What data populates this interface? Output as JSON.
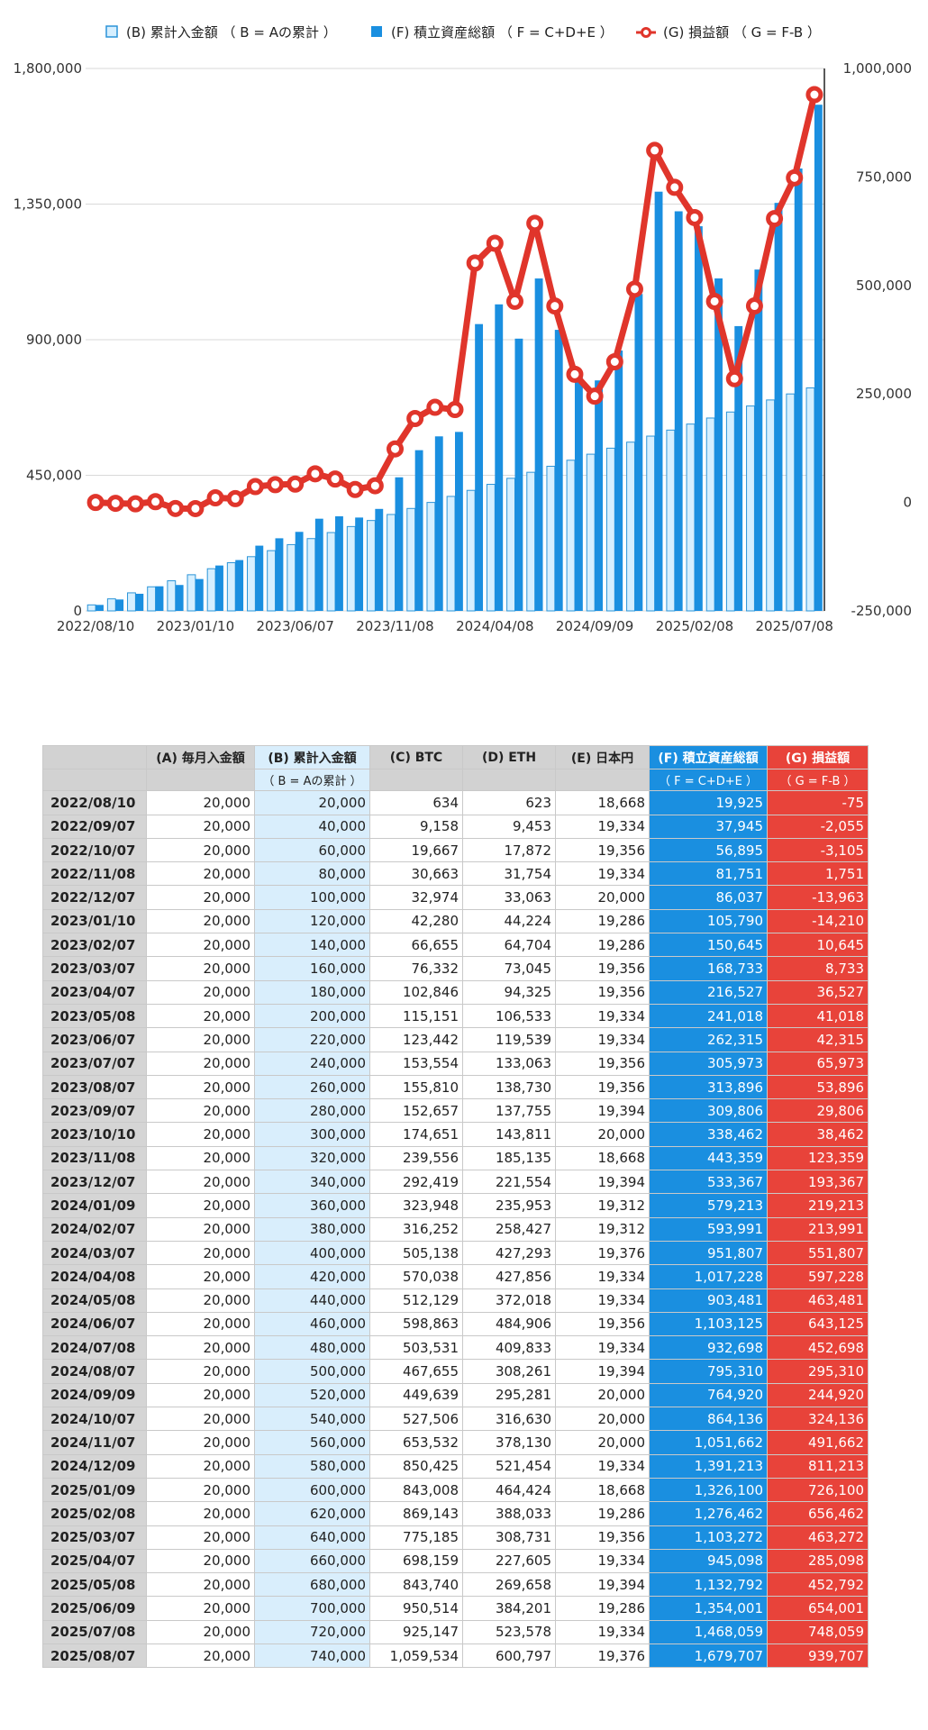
{
  "colors": {
    "cumulative_fill": "#d6efff",
    "cumulative_stroke": "#2b94d8",
    "assets_fill": "#1a8fe0",
    "profit_line": "#e0352b",
    "grid": "#d9d9d9"
  },
  "chart_data": {
    "type": "bar",
    "series": [
      {
        "name": "(B) 累計入金額 （ B = Aの累計 ）",
        "type": "bar",
        "axis": "left",
        "values": [
          20000,
          40000,
          60000,
          80000,
          100000,
          120000,
          140000,
          160000,
          180000,
          200000,
          220000,
          240000,
          260000,
          280000,
          300000,
          320000,
          340000,
          360000,
          380000,
          400000,
          420000,
          440000,
          460000,
          480000,
          500000,
          520000,
          540000,
          560000,
          580000,
          600000,
          620000,
          640000,
          660000,
          680000,
          700000,
          720000,
          740000
        ]
      },
      {
        "name": "(F) 積立資産総額 （ F = C+D+E ）",
        "type": "bar",
        "axis": "left",
        "values": [
          19925,
          37945,
          56895,
          81751,
          86037,
          105790,
          150645,
          168733,
          216527,
          241018,
          262315,
          305973,
          313896,
          309806,
          338462,
          443359,
          533367,
          579213,
          593991,
          951807,
          1017228,
          903481,
          1103125,
          932698,
          795310,
          764920,
          864136,
          1051662,
          1391213,
          1326100,
          1276462,
          1103272,
          945098,
          1132792,
          1354001,
          1468059,
          1679707
        ]
      },
      {
        "name": "(G) 損益額 （ G = F-B ）",
        "type": "line",
        "axis": "right",
        "values": [
          -75,
          -2055,
          -3105,
          1751,
          -13963,
          -14210,
          10645,
          8733,
          36527,
          41018,
          42315,
          65973,
          53896,
          29806,
          38462,
          123359,
          193367,
          219213,
          213991,
          551807,
          597228,
          463481,
          643125,
          452698,
          295310,
          244920,
          324136,
          491662,
          811213,
          726100,
          656462,
          463272,
          285098,
          452792,
          654001,
          748059,
          939707
        ]
      }
    ],
    "x_tick_labels": [
      "2022/08/10",
      "2023/01/10",
      "2023/06/07",
      "2023/11/08",
      "2024/04/08",
      "2024/09/09",
      "2025/02/08",
      "2025/07/08"
    ],
    "y_left_ticks": [
      "0",
      "450,000",
      "900,000",
      "1,350,000",
      "1,800,000"
    ],
    "y_right_ticks": [
      "-250,000",
      "0",
      "250,000",
      "500,000",
      "750,000",
      "1,000,000"
    ],
    "ylim_left": [
      0,
      1800000
    ],
    "ylim_right": [
      -250000,
      1000000
    ],
    "legend_position": "top",
    "grid": true
  },
  "table": {
    "headers": [
      "",
      "(A) 毎月入金額",
      "(B) 累計入金額",
      "(C) BTC",
      "(D) ETH",
      "(E) 日本円",
      "(F) 積立資産総額",
      "(G) 損益額"
    ],
    "subheaders": [
      "",
      "",
      "（ B = Aの累計 ）",
      "",
      "",
      "",
      "（ F = C+D+E ）",
      "（ G = F-B ）"
    ],
    "rows": [
      [
        "2022/08/10",
        "20,000",
        "20,000",
        "634",
        "623",
        "18,668",
        "19,925",
        "-75"
      ],
      [
        "2022/09/07",
        "20,000",
        "40,000",
        "9,158",
        "9,453",
        "19,334",
        "37,945",
        "-2,055"
      ],
      [
        "2022/10/07",
        "20,000",
        "60,000",
        "19,667",
        "17,872",
        "19,356",
        "56,895",
        "-3,105"
      ],
      [
        "2022/11/08",
        "20,000",
        "80,000",
        "30,663",
        "31,754",
        "19,334",
        "81,751",
        "1,751"
      ],
      [
        "2022/12/07",
        "20,000",
        "100,000",
        "32,974",
        "33,063",
        "20,000",
        "86,037",
        "-13,963"
      ],
      [
        "2023/01/10",
        "20,000",
        "120,000",
        "42,280",
        "44,224",
        "19,286",
        "105,790",
        "-14,210"
      ],
      [
        "2023/02/07",
        "20,000",
        "140,000",
        "66,655",
        "64,704",
        "19,286",
        "150,645",
        "10,645"
      ],
      [
        "2023/03/07",
        "20,000",
        "160,000",
        "76,332",
        "73,045",
        "19,356",
        "168,733",
        "8,733"
      ],
      [
        "2023/04/07",
        "20,000",
        "180,000",
        "102,846",
        "94,325",
        "19,356",
        "216,527",
        "36,527"
      ],
      [
        "2023/05/08",
        "20,000",
        "200,000",
        "115,151",
        "106,533",
        "19,334",
        "241,018",
        "41,018"
      ],
      [
        "2023/06/07",
        "20,000",
        "220,000",
        "123,442",
        "119,539",
        "19,334",
        "262,315",
        "42,315"
      ],
      [
        "2023/07/07",
        "20,000",
        "240,000",
        "153,554",
        "133,063",
        "19,356",
        "305,973",
        "65,973"
      ],
      [
        "2023/08/07",
        "20,000",
        "260,000",
        "155,810",
        "138,730",
        "19,356",
        "313,896",
        "53,896"
      ],
      [
        "2023/09/07",
        "20,000",
        "280,000",
        "152,657",
        "137,755",
        "19,394",
        "309,806",
        "29,806"
      ],
      [
        "2023/10/10",
        "20,000",
        "300,000",
        "174,651",
        "143,811",
        "20,000",
        "338,462",
        "38,462"
      ],
      [
        "2023/11/08",
        "20,000",
        "320,000",
        "239,556",
        "185,135",
        "18,668",
        "443,359",
        "123,359"
      ],
      [
        "2023/12/07",
        "20,000",
        "340,000",
        "292,419",
        "221,554",
        "19,394",
        "533,367",
        "193,367"
      ],
      [
        "2024/01/09",
        "20,000",
        "360,000",
        "323,948",
        "235,953",
        "19,312",
        "579,213",
        "219,213"
      ],
      [
        "2024/02/07",
        "20,000",
        "380,000",
        "316,252",
        "258,427",
        "19,312",
        "593,991",
        "213,991"
      ],
      [
        "2024/03/07",
        "20,000",
        "400,000",
        "505,138",
        "427,293",
        "19,376",
        "951,807",
        "551,807"
      ],
      [
        "2024/04/08",
        "20,000",
        "420,000",
        "570,038",
        "427,856",
        "19,334",
        "1,017,228",
        "597,228"
      ],
      [
        "2024/05/08",
        "20,000",
        "440,000",
        "512,129",
        "372,018",
        "19,334",
        "903,481",
        "463,481"
      ],
      [
        "2024/06/07",
        "20,000",
        "460,000",
        "598,863",
        "484,906",
        "19,356",
        "1,103,125",
        "643,125"
      ],
      [
        "2024/07/08",
        "20,000",
        "480,000",
        "503,531",
        "409,833",
        "19,334",
        "932,698",
        "452,698"
      ],
      [
        "2024/08/07",
        "20,000",
        "500,000",
        "467,655",
        "308,261",
        "19,394",
        "795,310",
        "295,310"
      ],
      [
        "2024/09/09",
        "20,000",
        "520,000",
        "449,639",
        "295,281",
        "20,000",
        "764,920",
        "244,920"
      ],
      [
        "2024/10/07",
        "20,000",
        "540,000",
        "527,506",
        "316,630",
        "20,000",
        "864,136",
        "324,136"
      ],
      [
        "2024/11/07",
        "20,000",
        "560,000",
        "653,532",
        "378,130",
        "20,000",
        "1,051,662",
        "491,662"
      ],
      [
        "2024/12/09",
        "20,000",
        "580,000",
        "850,425",
        "521,454",
        "19,334",
        "1,391,213",
        "811,213"
      ],
      [
        "2025/01/09",
        "20,000",
        "600,000",
        "843,008",
        "464,424",
        "18,668",
        "1,326,100",
        "726,100"
      ],
      [
        "2025/02/08",
        "20,000",
        "620,000",
        "869,143",
        "388,033",
        "19,286",
        "1,276,462",
        "656,462"
      ],
      [
        "2025/03/07",
        "20,000",
        "640,000",
        "775,185",
        "308,731",
        "19,356",
        "1,103,272",
        "463,272"
      ],
      [
        "2025/04/07",
        "20,000",
        "660,000",
        "698,159",
        "227,605",
        "19,334",
        "945,098",
        "285,098"
      ],
      [
        "2025/05/08",
        "20,000",
        "680,000",
        "843,740",
        "269,658",
        "19,394",
        "1,132,792",
        "452,792"
      ],
      [
        "2025/06/09",
        "20,000",
        "700,000",
        "950,514",
        "384,201",
        "19,286",
        "1,354,001",
        "654,001"
      ],
      [
        "2025/07/08",
        "20,000",
        "720,000",
        "925,147",
        "523,578",
        "19,334",
        "1,468,059",
        "748,059"
      ],
      [
        "2025/08/07",
        "20,000",
        "740,000",
        "1,059,534",
        "600,797",
        "19,376",
        "1,679,707",
        "939,707"
      ]
    ]
  }
}
